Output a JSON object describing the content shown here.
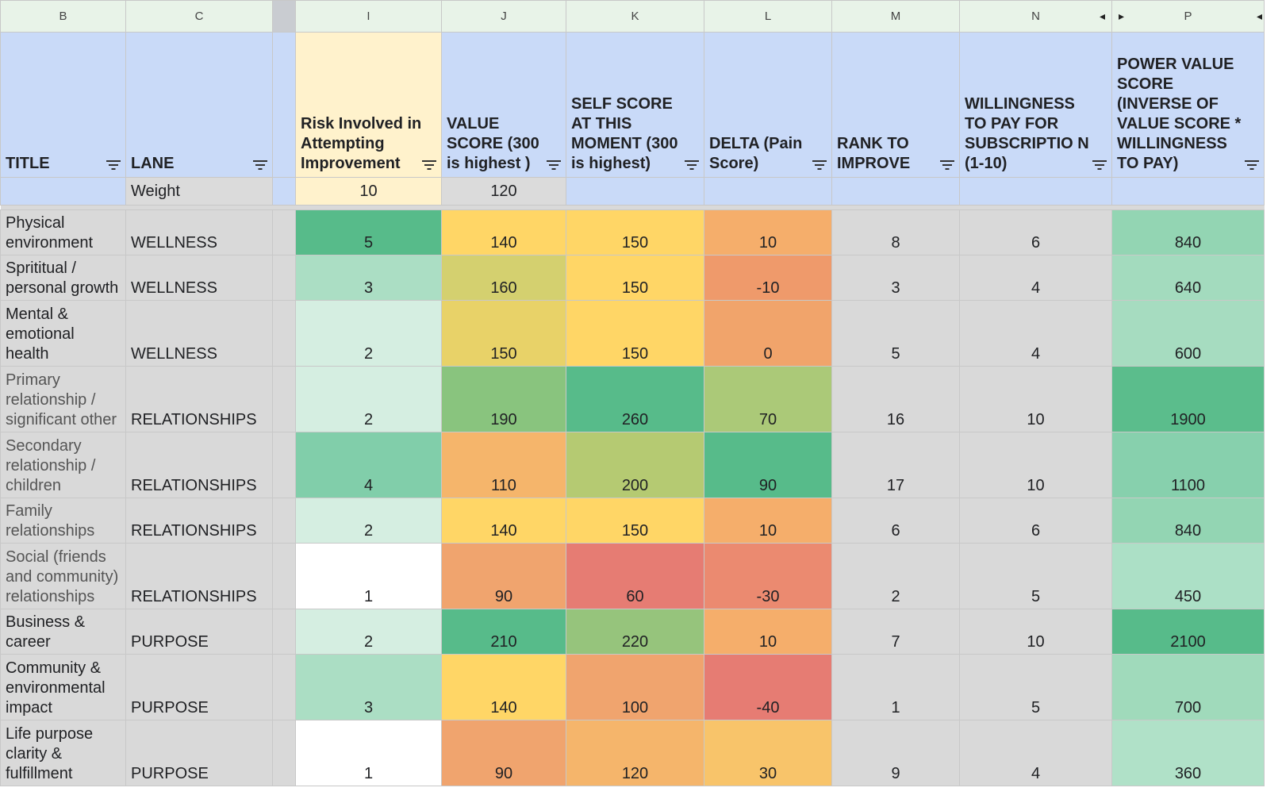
{
  "columns": [
    {
      "letter": "B"
    },
    {
      "letter": "C"
    },
    {
      "letter": "I"
    },
    {
      "letter": "J"
    },
    {
      "letter": "K"
    },
    {
      "letter": "L"
    },
    {
      "letter": "M"
    },
    {
      "letter": "N"
    },
    {
      "letter": "P"
    }
  ],
  "headers": {
    "title": "TITLE",
    "lane": "LANE",
    "risk": "Risk Involved in Attempting Improvement",
    "value_score": "VALUE SCORE (300 is highest )",
    "self_score": "SELF SCORE AT THIS MOMENT (300 is highest)",
    "delta": "DELTA (Pain Score)",
    "rank": "RANK TO IMPROVE",
    "willingness": "WILLINGNESS TO PAY FOR SUBSCRIPTIO N (1-10)",
    "power_value": "POWER VALUE SCORE (INVERSE OF VALUE SCORE * WILLINGNESS TO PAY)"
  },
  "weights": {
    "label": "Weight",
    "risk": "10",
    "value_score": "120"
  },
  "rows": [
    {
      "title": "Physical environment",
      "lane": "WELLNESS",
      "risk": "5",
      "value": "140",
      "self": "150",
      "delta": "10",
      "rank": "8",
      "will": "6",
      "power": "840",
      "muted": false,
      "colors": {
        "risk": "#57bb8a",
        "value": "#ffd666",
        "self": "#ffd666",
        "delta": "#f5ae6b",
        "power": "#93d5b3"
      }
    },
    {
      "title": "Sprititual / personal growth",
      "lane": "WELLNESS",
      "risk": "3",
      "value": "160",
      "self": "150",
      "delta": "-10",
      "rank": "3",
      "will": "4",
      "power": "640",
      "muted": false,
      "colors": {
        "risk": "#abdec4",
        "value": "#d4d06f",
        "self": "#ffd666",
        "delta": "#ef9a6b",
        "power": "#a3dbbe"
      }
    },
    {
      "title": "Mental & emotional health",
      "lane": "WELLNESS",
      "risk": "2",
      "value": "150",
      "self": "150",
      "delta": "0",
      "rank": "5",
      "will": "4",
      "power": "600",
      "muted": false,
      "colors": {
        "risk": "#d5eee1",
        "value": "#e8d268",
        "self": "#ffd666",
        "delta": "#f1a46b",
        "power": "#a6dcc0"
      }
    },
    {
      "title": "Primary relationship / significant other",
      "lane": "RELATIONSHIPS",
      "risk": "2",
      "value": "190",
      "self": "260",
      "delta": "70",
      "rank": "16",
      "will": "10",
      "power": "1900",
      "muted": true,
      "colors": {
        "risk": "#d5eee1",
        "value": "#89c47e",
        "self": "#57bb8a",
        "delta": "#abc978",
        "power": "#5bbd8c"
      }
    },
    {
      "title": "Secondary relationship / children",
      "lane": "RELATIONSHIPS",
      "risk": "4",
      "value": "110",
      "self": "200",
      "delta": "90",
      "rank": "17",
      "will": "10",
      "power": "1100",
      "muted": true,
      "colors": {
        "risk": "#81ceaa",
        "value": "#f5b56b",
        "self": "#b5ca72",
        "delta": "#57bb8a",
        "power": "#87d0ad"
      }
    },
    {
      "title": "Family relationships",
      "lane": "RELATIONSHIPS",
      "risk": "2",
      "value": "140",
      "self": "150",
      "delta": "10",
      "rank": "6",
      "will": "6",
      "power": "840",
      "muted": true,
      "colors": {
        "risk": "#d5eee1",
        "value": "#ffd666",
        "self": "#ffd666",
        "delta": "#f5ae6b",
        "power": "#93d5b3"
      }
    },
    {
      "title": "Social (friends and community) relationships",
      "lane": "RELATIONSHIPS",
      "risk": "1",
      "value": "90",
      "self": "60",
      "delta": "-30",
      "rank": "2",
      "will": "5",
      "power": "450",
      "muted": true,
      "colors": {
        "risk": "#ffffff",
        "value": "#f0a46e",
        "self": "#e67c73",
        "delta": "#eb8a70",
        "power": "#ace0c6"
      }
    },
    {
      "title": "Business & career",
      "lane": "PURPOSE",
      "risk": "2",
      "value": "210",
      "self": "220",
      "delta": "10",
      "rank": "7",
      "will": "10",
      "power": "2100",
      "muted": false,
      "colors": {
        "risk": "#d5eee1",
        "value": "#57bb8a",
        "self": "#96c47c",
        "delta": "#f5ae6b",
        "power": "#57bb8a"
      }
    },
    {
      "title": "Community & environmental impact",
      "lane": "PURPOSE",
      "risk": "3",
      "value": "140",
      "self": "100",
      "delta": "-40",
      "rank": "1",
      "will": "5",
      "power": "700",
      "muted": false,
      "colors": {
        "risk": "#abdec4",
        "value": "#ffd666",
        "self": "#f0a46e",
        "delta": "#e67c73",
        "power": "#a0dabb"
      }
    },
    {
      "title": "Life purpose clarity & fulfillment",
      "lane": "PURPOSE",
      "risk": "1",
      "value": "90",
      "self": "120",
      "delta": "30",
      "rank": "9",
      "will": "4",
      "power": "360",
      "muted": false,
      "colors": {
        "risk": "#ffffff",
        "value": "#f0a46e",
        "self": "#f5b56b",
        "delta": "#f8c46a",
        "power": "#b0e1c8"
      }
    }
  ]
}
